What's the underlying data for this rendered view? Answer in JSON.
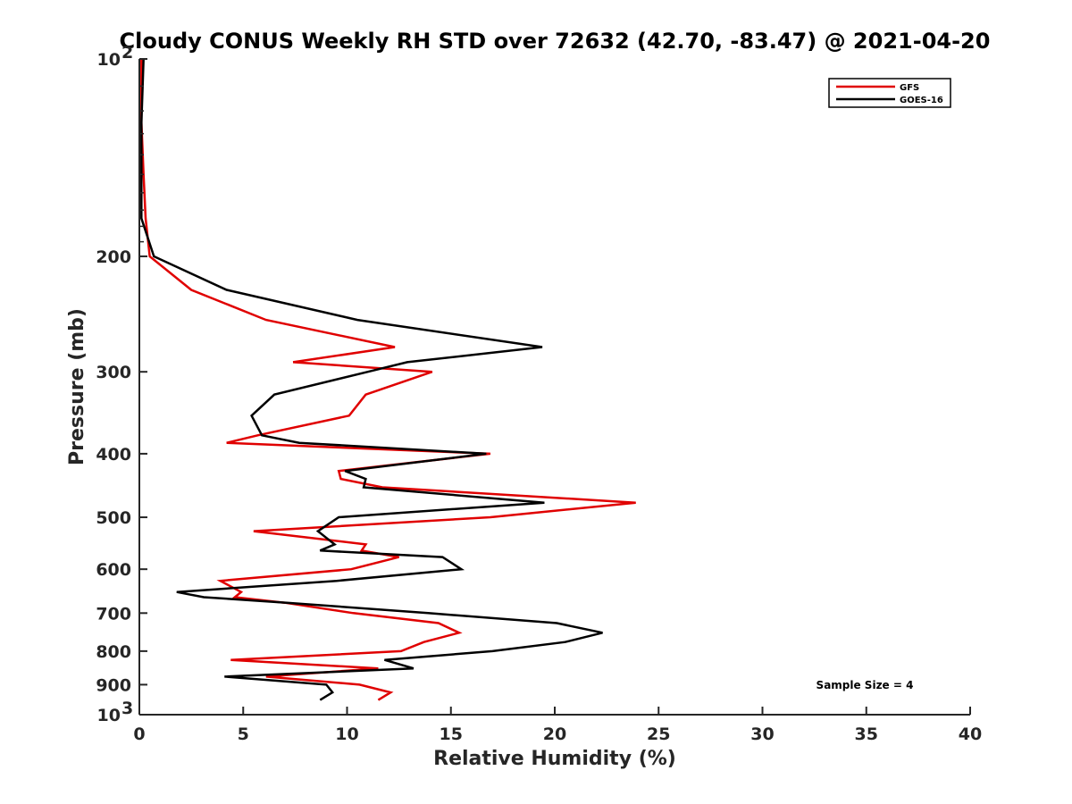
{
  "chart_data": {
    "type": "line",
    "title": "Cloudy CONUS Weekly RH STD over 72632 (42.70, -83.47) @ 2021-04-20",
    "xlabel": "Relative Humidity (%)",
    "ylabel": "Pressure (mb)",
    "xlim": [
      0,
      40
    ],
    "ylim": [
      100,
      1000
    ],
    "y_scale": "log",
    "y_reversed": true,
    "x_ticks": [
      0,
      5,
      10,
      15,
      20,
      25,
      30,
      35,
      40
    ],
    "y_ticks": [
      {
        "value": 100,
        "label": "10",
        "sup": "2"
      },
      {
        "value": 200,
        "label": "200",
        "sup": ""
      },
      {
        "value": 300,
        "label": "300",
        "sup": ""
      },
      {
        "value": 400,
        "label": "400",
        "sup": ""
      },
      {
        "value": 500,
        "label": "500",
        "sup": ""
      },
      {
        "value": 600,
        "label": "600",
        "sup": ""
      },
      {
        "value": 700,
        "label": "700",
        "sup": ""
      },
      {
        "value": 800,
        "label": "800",
        "sup": ""
      },
      {
        "value": 900,
        "label": "900",
        "sup": ""
      },
      {
        "value": 1000,
        "label": "10",
        "sup": "3"
      }
    ],
    "grid": false,
    "legend_position": "top-right",
    "annotation": "Sample Size = 4",
    "series": [
      {
        "name": "GFS",
        "color": "#e00000",
        "points": [
          [
            0.1,
            100
          ],
          [
            0.1,
            125
          ],
          [
            0.2,
            150
          ],
          [
            0.3,
            175
          ],
          [
            0.5,
            200
          ],
          [
            2.5,
            225
          ],
          [
            6.1,
            250
          ],
          [
            12.3,
            275
          ],
          [
            7.4,
            290
          ],
          [
            14.1,
            300
          ],
          [
            10.9,
            325
          ],
          [
            10.1,
            350
          ],
          [
            5.7,
            375
          ],
          [
            4.2,
            385
          ],
          [
            16.9,
            400
          ],
          [
            9.6,
            425
          ],
          [
            9.7,
            437
          ],
          [
            11.7,
            450
          ],
          [
            23.9,
            475
          ],
          [
            16.9,
            500
          ],
          [
            5.5,
            525
          ],
          [
            10.9,
            550
          ],
          [
            10.7,
            562
          ],
          [
            12.5,
            575
          ],
          [
            10.2,
            600
          ],
          [
            3.9,
            625
          ],
          [
            4.9,
            650
          ],
          [
            4.6,
            662
          ],
          [
            7.0,
            675
          ],
          [
            10.3,
            700
          ],
          [
            14.4,
            725
          ],
          [
            15.4,
            750
          ],
          [
            13.7,
            775
          ],
          [
            12.6,
            800
          ],
          [
            4.4,
            825
          ],
          [
            11.5,
            850
          ],
          [
            6.1,
            875
          ],
          [
            10.6,
            900
          ],
          [
            12.1,
            925
          ],
          [
            11.5,
            950
          ]
        ]
      },
      {
        "name": "GOES-16",
        "color": "#000000",
        "points": [
          [
            0.2,
            100
          ],
          [
            0.1,
            125
          ],
          [
            0.1,
            150
          ],
          [
            0.1,
            175
          ],
          [
            0.7,
            200
          ],
          [
            4.2,
            225
          ],
          [
            10.5,
            250
          ],
          [
            19.4,
            275
          ],
          [
            12.9,
            290
          ],
          [
            11.0,
            300
          ],
          [
            6.5,
            325
          ],
          [
            5.4,
            350
          ],
          [
            5.9,
            375
          ],
          [
            7.7,
            385
          ],
          [
            16.7,
            400
          ],
          [
            9.9,
            425
          ],
          [
            10.9,
            437
          ],
          [
            10.8,
            450
          ],
          [
            19.5,
            475
          ],
          [
            9.6,
            500
          ],
          [
            8.6,
            525
          ],
          [
            9.4,
            550
          ],
          [
            8.7,
            562
          ],
          [
            14.6,
            575
          ],
          [
            15.5,
            600
          ],
          [
            9.5,
            625
          ],
          [
            1.8,
            650
          ],
          [
            3.1,
            662
          ],
          [
            7.1,
            675
          ],
          [
            13.9,
            700
          ],
          [
            20.1,
            725
          ],
          [
            22.3,
            750
          ],
          [
            20.5,
            775
          ],
          [
            17.0,
            800
          ],
          [
            11.8,
            825
          ],
          [
            13.2,
            850
          ],
          [
            4.1,
            875
          ],
          [
            9.0,
            900
          ],
          [
            9.3,
            925
          ],
          [
            8.7,
            950
          ]
        ]
      }
    ]
  }
}
